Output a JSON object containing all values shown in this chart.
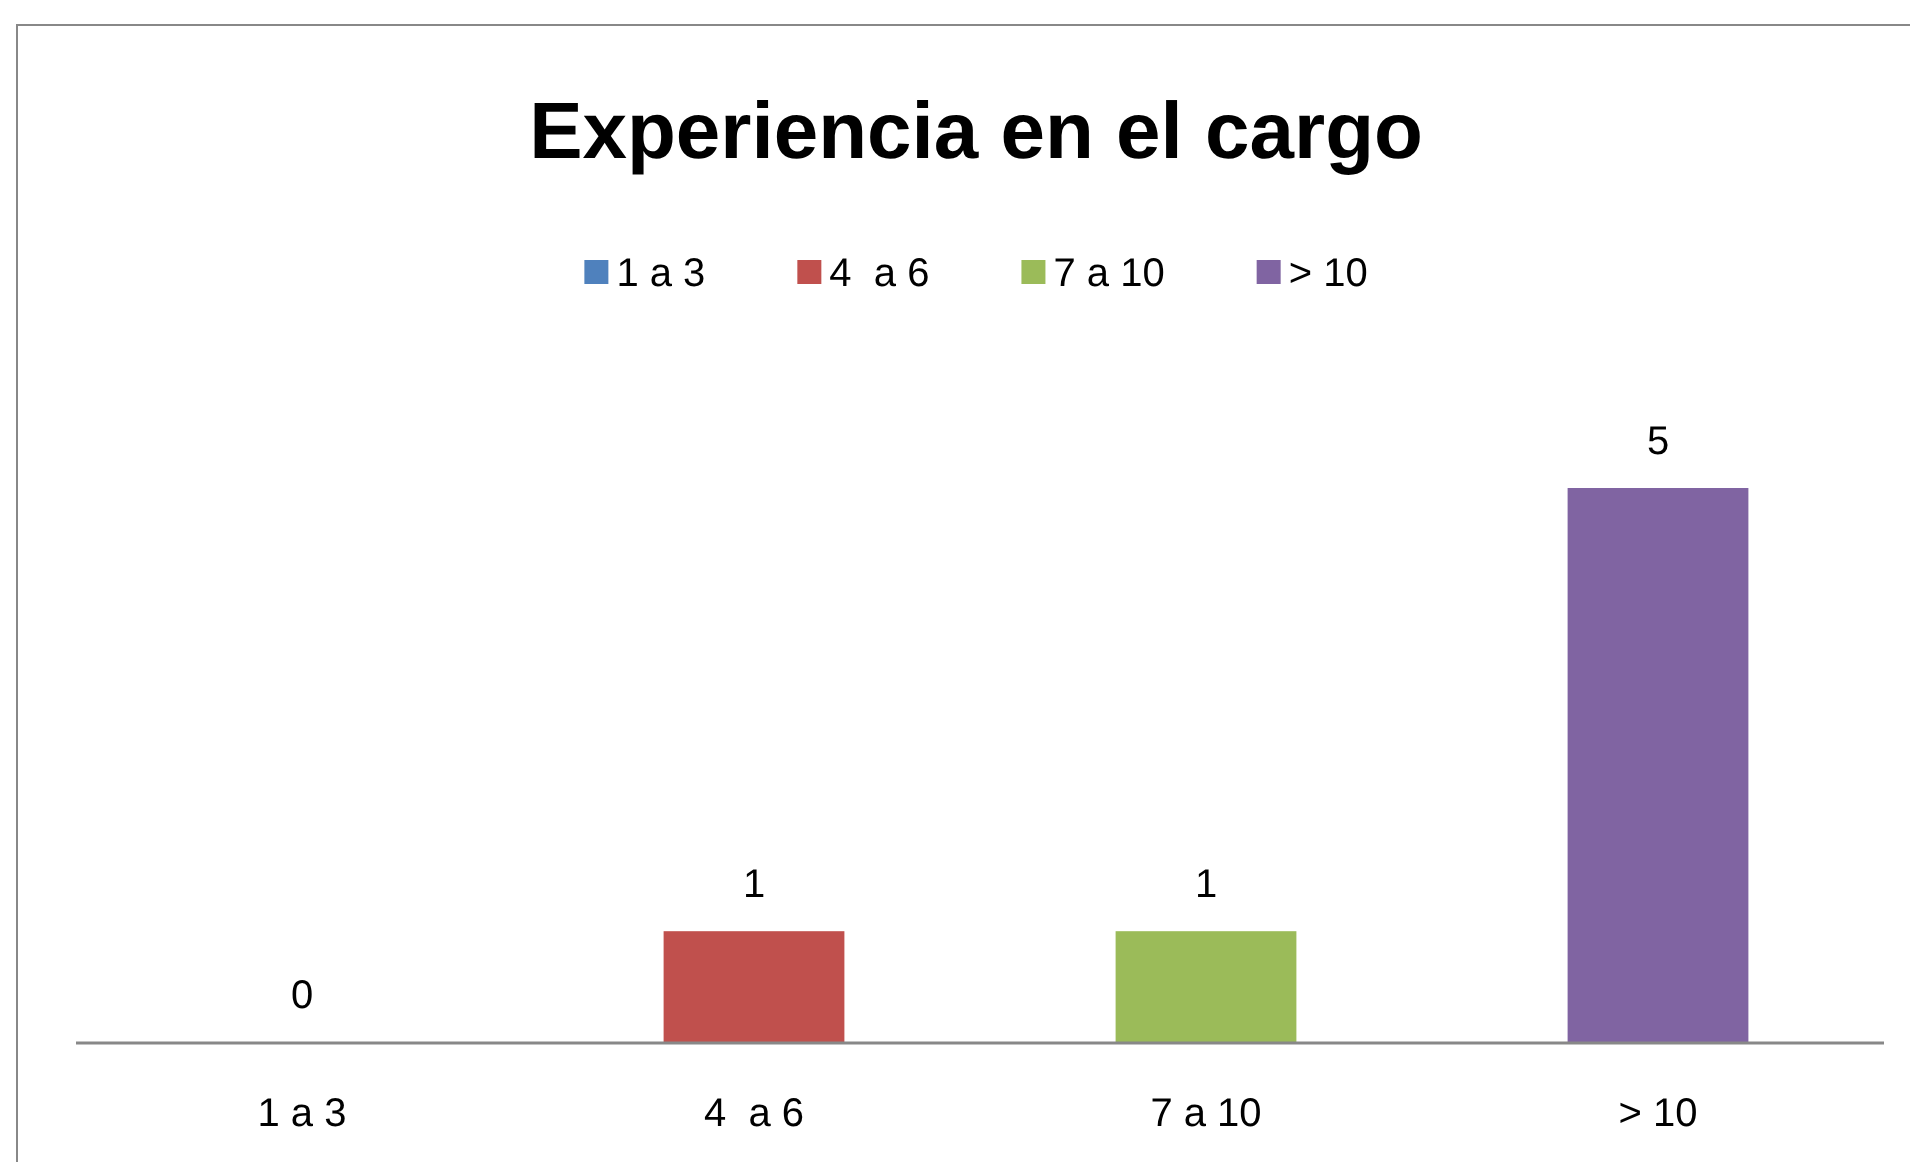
{
  "chart_data": {
    "type": "bar",
    "title": "Experiencia en el cargo",
    "categories": [
      "1 a 3",
      "4  a 6",
      "7 a 10",
      "> 10"
    ],
    "stacked": true,
    "series": [
      {
        "name": "1 a 3",
        "color": "#4f81bd",
        "values": [
          0,
          null,
          null,
          null
        ]
      },
      {
        "name": "4  a 6",
        "color": "#c0504d",
        "values": [
          null,
          1,
          null,
          null
        ]
      },
      {
        "name": "7 a 10",
        "color": "#9bbb59",
        "values": [
          null,
          null,
          1,
          null
        ]
      },
      {
        "name": "> 10",
        "color": "#8064a2",
        "values": [
          null,
          null,
          null,
          5
        ]
      }
    ],
    "data_labels": true,
    "legend": "top"
  }
}
